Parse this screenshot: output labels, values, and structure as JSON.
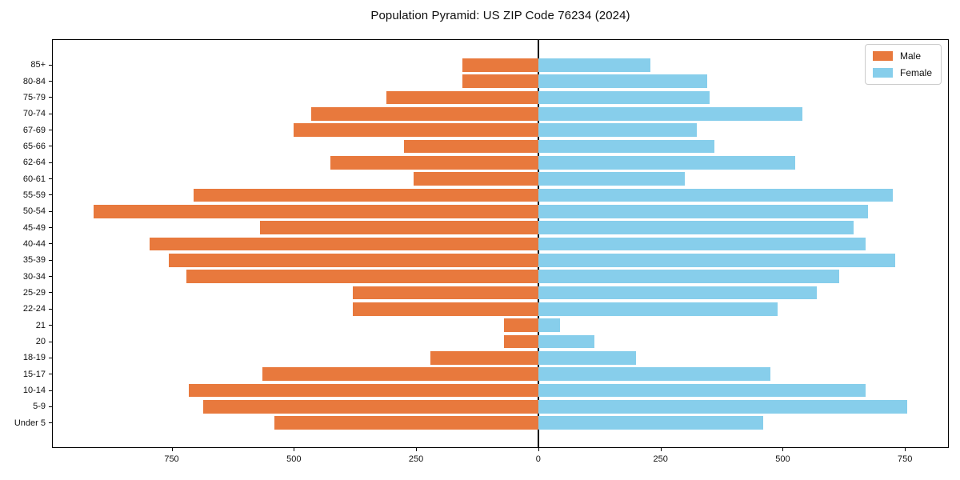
{
  "colors": {
    "male": "#e8793d",
    "female": "#87ceeb",
    "axis": "#000000",
    "legend_border": "#cccccc"
  },
  "legend": {
    "male_label": "Male",
    "female_label": "Female",
    "position": "upper right"
  },
  "chart_data": {
    "type": "bar",
    "orientation": "horizontal-diverging-pyramid",
    "title": "Population Pyramid: US ZIP Code 76234 (2024)",
    "categories": [
      "85+",
      "80-84",
      "75-79",
      "70-74",
      "67-69",
      "65-66",
      "62-64",
      "60-61",
      "55-59",
      "50-54",
      "45-49",
      "40-44",
      "35-39",
      "30-34",
      "25-29",
      "22-24",
      "21",
      "20",
      "18-19",
      "15-17",
      "10-14",
      "5-9",
      "Under 5"
    ],
    "series": [
      {
        "name": "Male",
        "side": "left",
        "color": "#e8793d",
        "values": [
          155,
          155,
          310,
          465,
          500,
          275,
          425,
          255,
          705,
          910,
          570,
          795,
          755,
          720,
          380,
          380,
          70,
          70,
          220,
          565,
          715,
          685,
          540
        ]
      },
      {
        "name": "Female",
        "side": "right",
        "color": "#87ceeb",
        "values": [
          230,
          345,
          350,
          540,
          325,
          360,
          525,
          300,
          725,
          675,
          645,
          670,
          730,
          615,
          570,
          490,
          45,
          115,
          200,
          475,
          670,
          755,
          460
        ]
      }
    ],
    "xlabel": "",
    "ylabel": "",
    "xlim": [
      -993,
      838
    ],
    "xticks": [
      -750,
      -500,
      -250,
      0,
      250,
      500,
      750
    ],
    "xtick_labels": [
      "750",
      "500",
      "250",
      "0",
      "250",
      "500",
      "750"
    ],
    "grid": false,
    "zero_axis_line": true,
    "legend_position": "upper right"
  }
}
